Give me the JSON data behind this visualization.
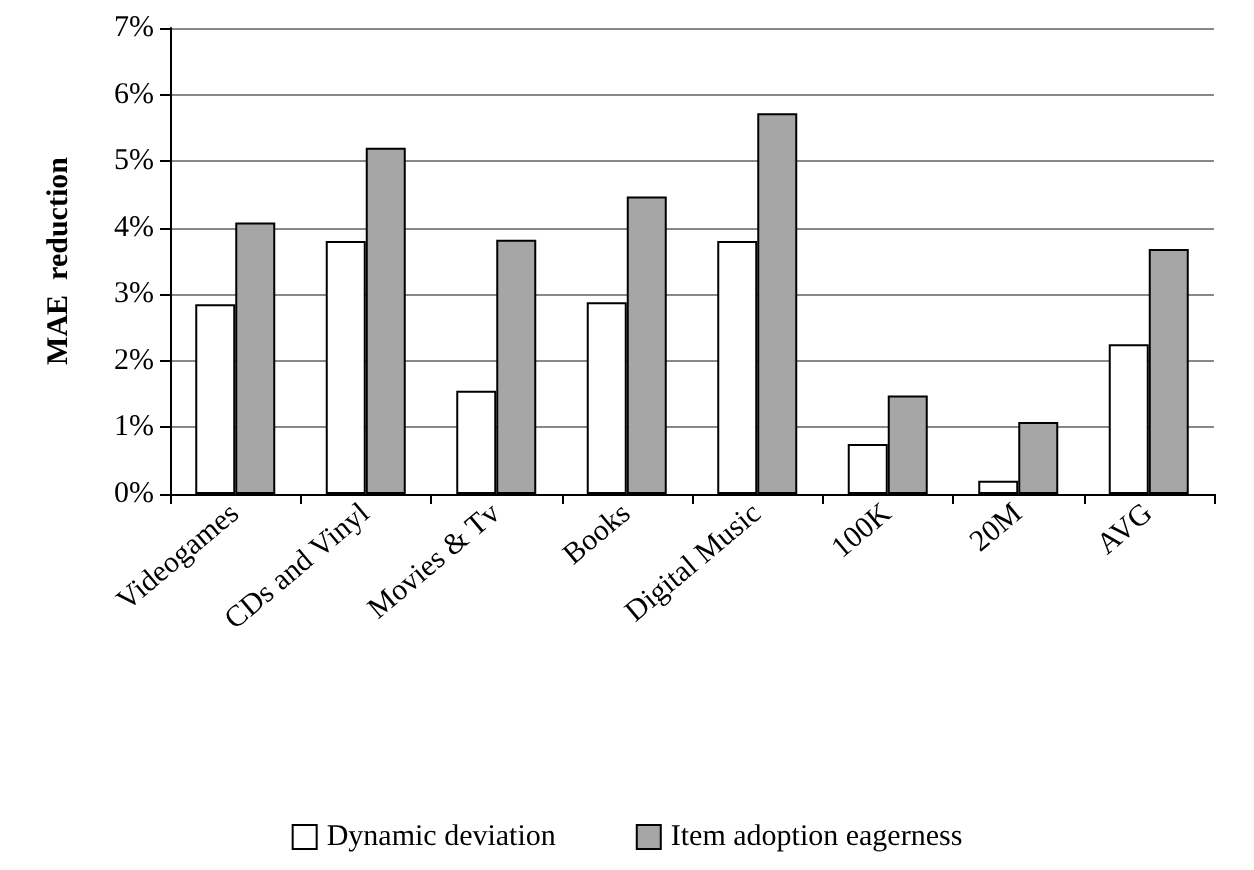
{
  "chart_data": {
    "type": "bar",
    "ylabel": "MAE  reduction",
    "categories": [
      "Videogames",
      "CDs and Vinyl",
      "Movies & Tv",
      "Books",
      "Digital Music",
      "100K",
      "20M",
      "AVG"
    ],
    "series": [
      {
        "name": "Dynamic deviation",
        "color": "#ffffff",
        "values": [
          2.85,
          3.8,
          1.55,
          2.88,
          3.8,
          0.75,
          0.2,
          2.25
        ]
      },
      {
        "name": "Item adoption eagerness",
        "color": "#a6a6a6",
        "values": [
          4.08,
          5.2,
          3.82,
          4.47,
          5.72,
          1.48,
          1.08,
          3.68
        ]
      }
    ],
    "ylim": [
      0,
      7
    ],
    "yticks": [
      {
        "value": 0,
        "label": "0%"
      },
      {
        "value": 1,
        "label": "1%"
      },
      {
        "value": 2,
        "label": "2%"
      },
      {
        "value": 3,
        "label": "3%"
      },
      {
        "value": 4,
        "label": "4%"
      },
      {
        "value": 5,
        "label": "5%"
      },
      {
        "value": 6,
        "label": "6%"
      },
      {
        "value": 7,
        "label": "7%"
      }
    ],
    "grid": "y",
    "legend": "bottom"
  }
}
